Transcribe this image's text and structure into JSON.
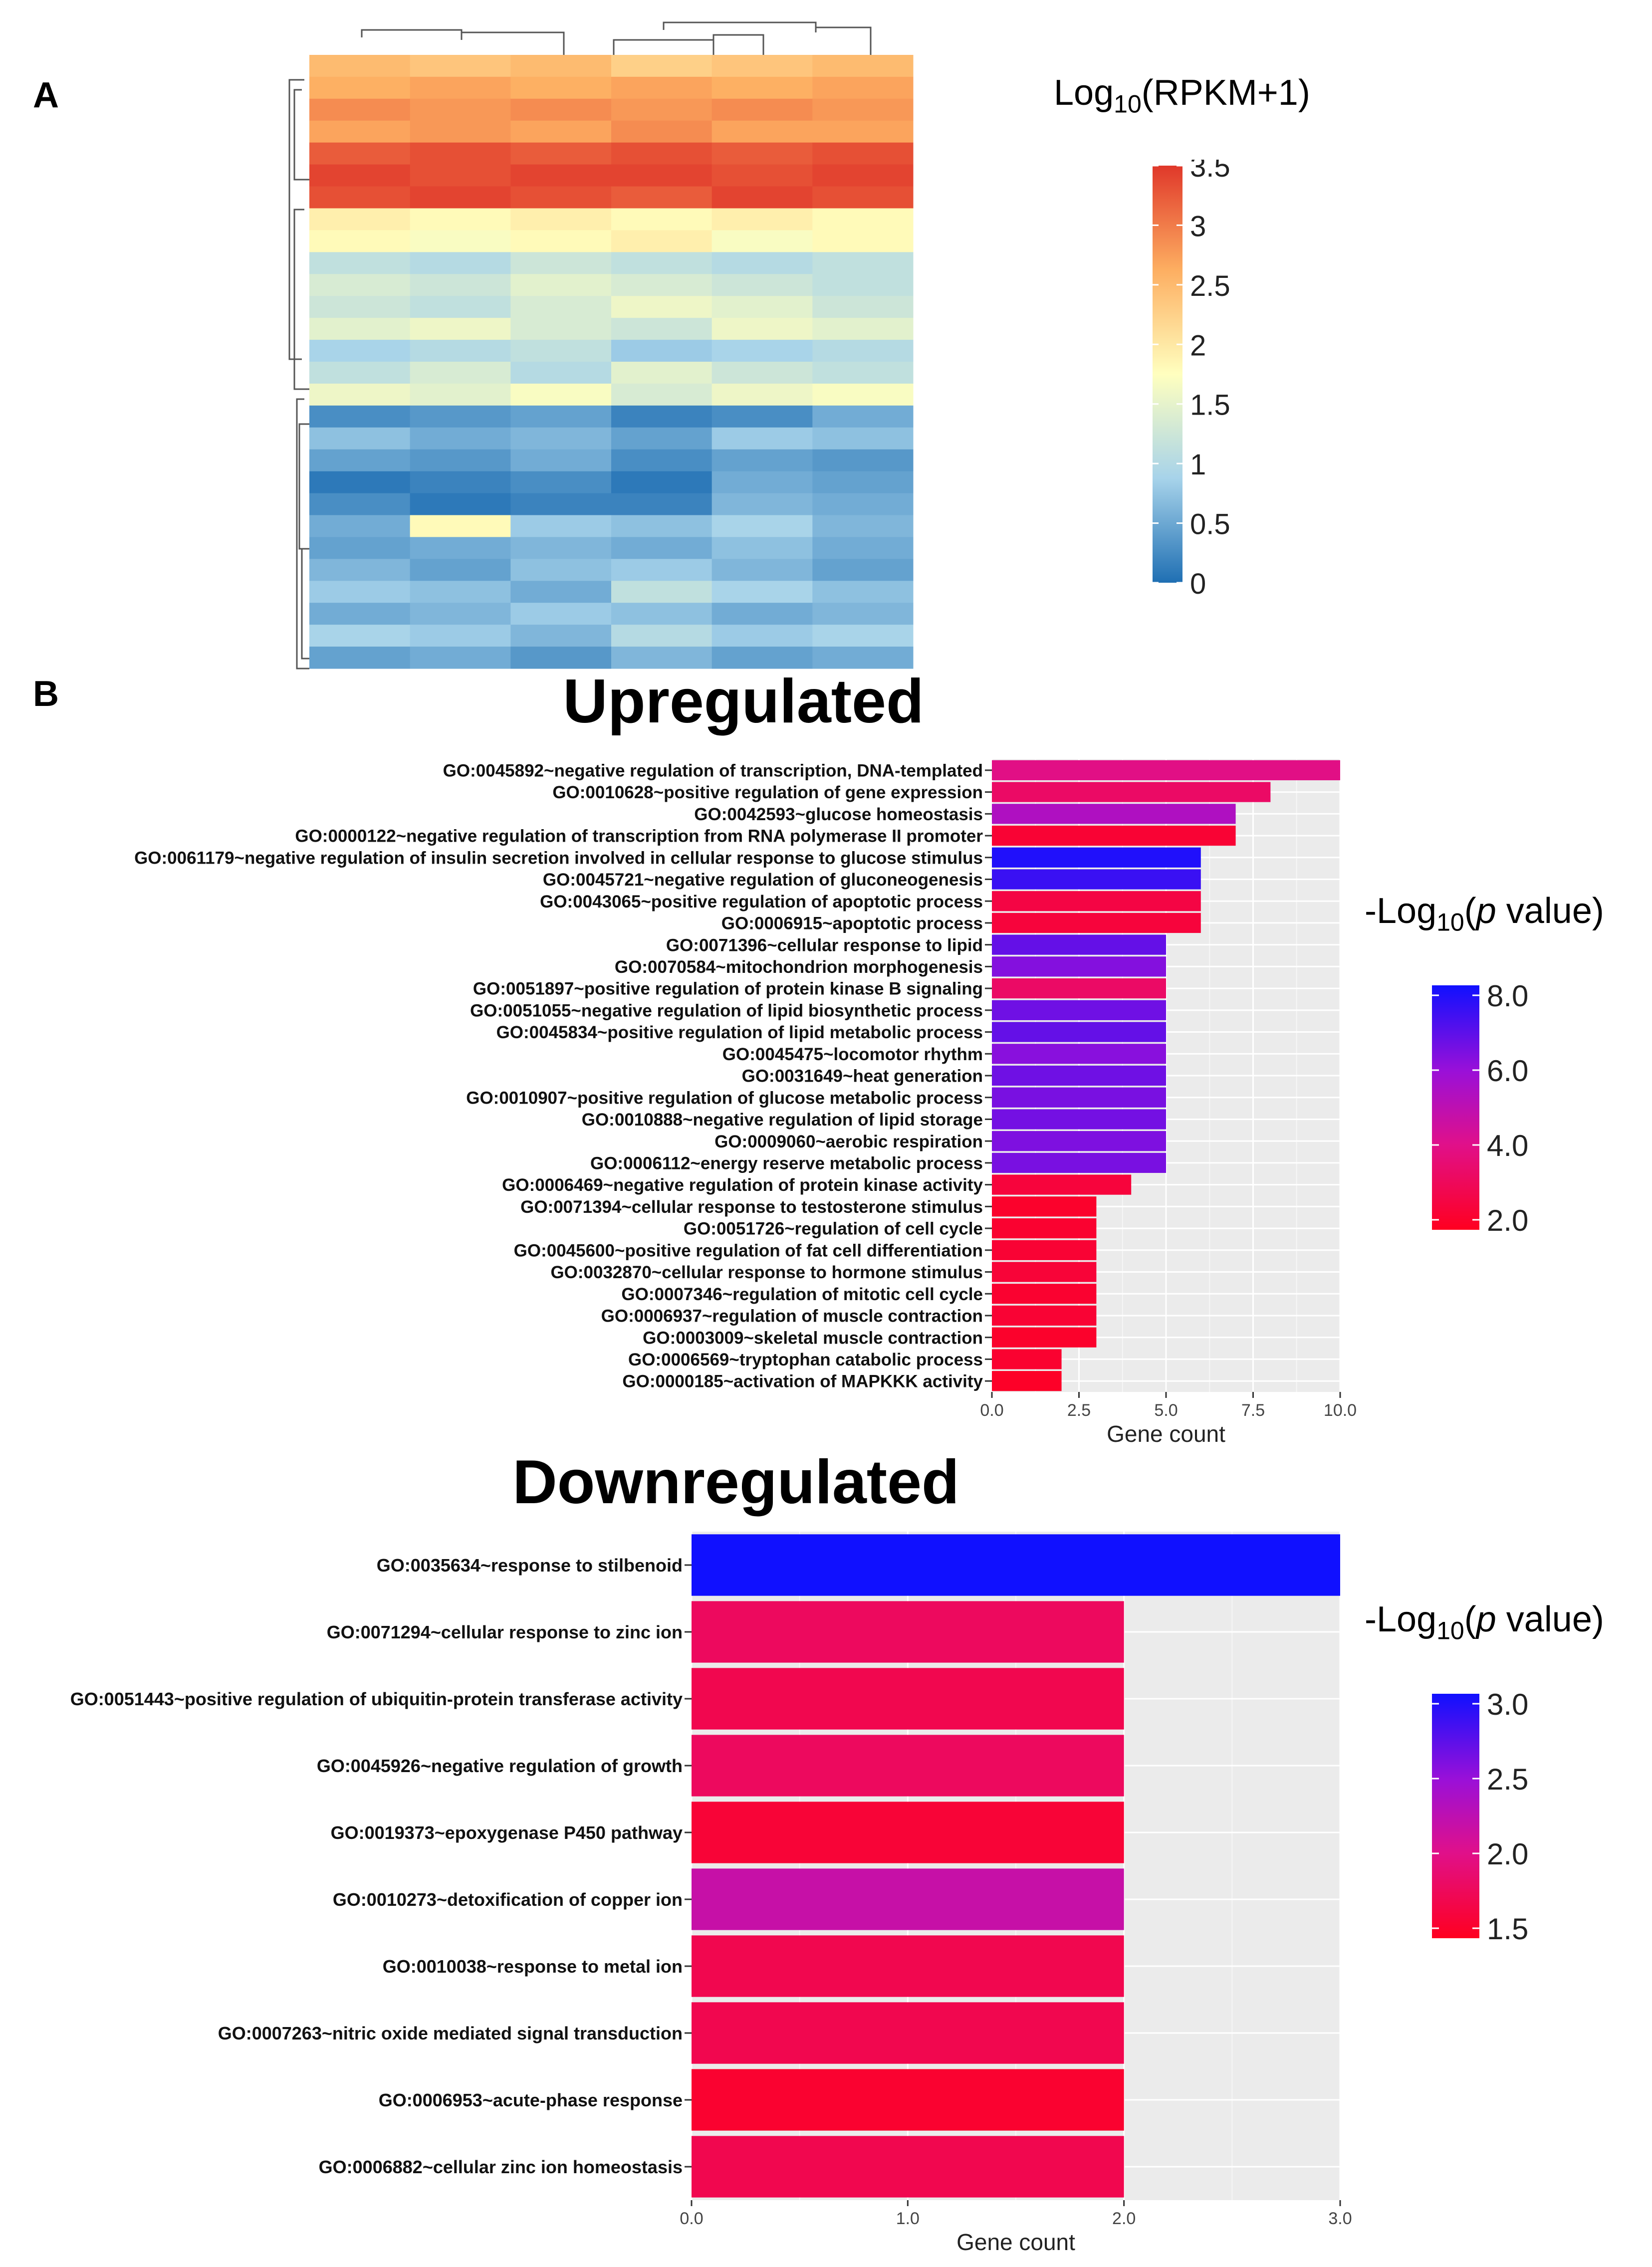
{
  "panel_a": {
    "label": "A",
    "legend": {
      "title_main": "Log",
      "title_sub": "10",
      "title_rest": "(RPKM+1)",
      "ticks": [
        "3.5",
        "3",
        "2.5",
        "2",
        "1.5",
        "1",
        "0.5",
        "0"
      ],
      "max": 3.5,
      "min": 0
    },
    "colors": {
      "low": "#1f6fb3",
      "mid": "#ffffbf",
      "high": "#e0382a"
    },
    "heatmap_rows": [
      [
        2.4,
        2.3,
        2.4,
        2.2,
        2.3,
        2.4
      ],
      [
        2.5,
        2.6,
        2.5,
        2.6,
        2.5,
        2.6
      ],
      [
        2.8,
        2.7,
        2.8,
        2.7,
        2.8,
        2.7
      ],
      [
        2.6,
        2.7,
        2.6,
        2.8,
        2.6,
        2.6
      ],
      [
        3.2,
        3.3,
        3.2,
        3.3,
        3.2,
        3.3
      ],
      [
        3.4,
        3.3,
        3.4,
        3.4,
        3.3,
        3.4
      ],
      [
        3.3,
        3.4,
        3.3,
        3.2,
        3.4,
        3.3
      ],
      [
        1.9,
        1.8,
        1.9,
        1.8,
        1.9,
        1.8
      ],
      [
        1.8,
        1.7,
        1.8,
        1.9,
        1.7,
        1.8
      ],
      [
        1.2,
        1.1,
        1.3,
        1.2,
        1.1,
        1.2
      ],
      [
        1.4,
        1.3,
        1.5,
        1.4,
        1.3,
        1.2
      ],
      [
        1.3,
        1.2,
        1.4,
        1.6,
        1.5,
        1.3
      ],
      [
        1.5,
        1.6,
        1.4,
        1.3,
        1.6,
        1.5
      ],
      [
        1.0,
        1.1,
        1.2,
        0.9,
        1.0,
        1.1
      ],
      [
        1.2,
        1.4,
        1.1,
        1.5,
        1.3,
        1.2
      ],
      [
        1.6,
        1.5,
        1.7,
        1.4,
        1.6,
        1.7
      ],
      [
        0.3,
        0.4,
        0.5,
        0.2,
        0.3,
        0.6
      ],
      [
        0.8,
        0.6,
        0.7,
        0.5,
        0.9,
        0.8
      ],
      [
        0.5,
        0.4,
        0.6,
        0.3,
        0.5,
        0.4
      ],
      [
        0.1,
        0.2,
        0.3,
        0.1,
        0.6,
        0.5
      ],
      [
        0.3,
        0.1,
        0.2,
        0.2,
        0.7,
        0.6
      ],
      [
        0.6,
        1.8,
        0.9,
        0.8,
        1.0,
        0.7
      ],
      [
        0.5,
        0.6,
        0.7,
        0.6,
        0.8,
        0.6
      ],
      [
        0.7,
        0.5,
        0.8,
        0.9,
        0.7,
        0.5
      ],
      [
        0.9,
        0.8,
        0.6,
        1.2,
        1.0,
        0.8
      ],
      [
        0.6,
        0.7,
        0.9,
        0.8,
        0.6,
        0.7
      ],
      [
        1.0,
        0.9,
        0.7,
        1.1,
        0.9,
        1.0
      ],
      [
        0.5,
        0.6,
        0.4,
        0.7,
        0.5,
        0.6
      ]
    ]
  },
  "panel_b": {
    "label": "B",
    "upregulated": {
      "title": "Upregulated",
      "legend": {
        "title_main": "-Log",
        "title_sub": "10",
        "title_paren_open": "(",
        "title_italic": "p",
        "title_rest": " value)",
        "ticks": [
          "8.0",
          "6.0",
          "4.0",
          "2.0"
        ],
        "max": 8.8,
        "min": 1.3
      }
    },
    "downregulated": {
      "title": "Downregulated",
      "legend": {
        "title_main": "-Log",
        "title_sub": "10",
        "title_paren_open": "(",
        "title_italic": "p",
        "title_rest": " value)",
        "ticks": [
          "3.0",
          "2.5",
          "2.0",
          "1.5"
        ],
        "max": 3.25,
        "min": 1.3
      }
    }
  },
  "chart_data": [
    {
      "type": "bar",
      "orientation": "horizontal",
      "title": "Upregulated",
      "xlabel": "Gene count",
      "ylabel": "",
      "xlim": [
        0,
        10
      ],
      "xticks": [
        "0.0",
        "2.5",
        "5.0",
        "7.5",
        "10.0"
      ],
      "color_by": "-Log10(p value)",
      "categories": [
        "GO:0045892~negative regulation of transcription, DNA-templated",
        "GO:0010628~positive regulation of gene expression",
        "GO:0042593~glucose homeostasis",
        "GO:0000122~negative regulation of transcription from RNA polymerase II promoter",
        "GO:0061179~negative regulation of insulin secretion involved in cellular response to glucose stimulus",
        "GO:0045721~negative regulation of gluconeogenesis",
        "GO:0043065~positive regulation of apoptotic process",
        "GO:0006915~apoptotic process",
        "GO:0071396~cellular response to lipid",
        "GO:0070584~mitochondrion morphogenesis",
        "GO:0051897~positive regulation of protein kinase B signaling",
        "GO:0051055~negative regulation of lipid biosynthetic process",
        "GO:0045834~positive regulation of lipid metabolic process",
        "GO:0045475~locomotor rhythm",
        "GO:0031649~heat generation",
        "GO:0010907~positive regulation of glucose metabolic process",
        "GO:0010888~negative regulation of lipid storage",
        "GO:0009060~aerobic respiration",
        "GO:0006112~energy reserve metabolic process",
        "GO:0006469~negative regulation of protein kinase activity",
        "GO:0071394~cellular response to testosterone stimulus",
        "GO:0051726~regulation of cell cycle",
        "GO:0045600~positive regulation of fat cell differentiation",
        "GO:0032870~cellular response to hormone stimulus",
        "GO:0007346~regulation of mitotic cell cycle",
        "GO:0006937~regulation of muscle contraction",
        "GO:0003009~skeletal muscle contraction",
        "GO:0006569~tryptophan catabolic process",
        "GO:0000185~activation of MAPKKK activity"
      ],
      "values": [
        10,
        8,
        7,
        7,
        6,
        6,
        6,
        6,
        5,
        5,
        5,
        5,
        5,
        5,
        5,
        5,
        5,
        5,
        5,
        4,
        3,
        3,
        3,
        3,
        3,
        3,
        3,
        2,
        2
      ],
      "neg_log10_p": [
        3.8,
        3.0,
        5.5,
        1.8,
        8.5,
        8.0,
        2.2,
        2.0,
        7.2,
        6.6,
        3.0,
        7.0,
        7.2,
        6.5,
        7.0,
        6.8,
        6.9,
        6.7,
        6.8,
        2.0,
        1.6,
        1.7,
        1.8,
        1.9,
        1.7,
        1.8,
        1.6,
        1.7,
        1.5
      ]
    },
    {
      "type": "bar",
      "orientation": "horizontal",
      "title": "Downregulated",
      "xlabel": "Gene count",
      "ylabel": "",
      "xlim": [
        0,
        3
      ],
      "xticks": [
        "0.0",
        "1.0",
        "2.0",
        "3.0"
      ],
      "color_by": "-Log10(p value)",
      "categories": [
        "GO:0035634~response to stilbenoid",
        "GO:0071294~cellular response to zinc ion",
        "GO:0051443~positive regulation of ubiquitin-protein transferase activity",
        "GO:0045926~negative regulation of growth",
        "GO:0019373~epoxygenase P450 pathway",
        "GO:0010273~detoxification of copper ion",
        "GO:0010038~response to metal ion",
        "GO:0007263~nitric oxide mediated signal transduction",
        "GO:0006953~acute-phase response",
        "GO:0006882~cellular zinc ion homeostasis"
      ],
      "values": [
        3,
        2,
        2,
        2,
        2,
        2,
        2,
        2,
        2,
        2
      ],
      "neg_log10_p": [
        3.25,
        1.7,
        1.6,
        1.7,
        1.45,
        2.2,
        1.6,
        1.6,
        1.4,
        1.6
      ]
    }
  ]
}
